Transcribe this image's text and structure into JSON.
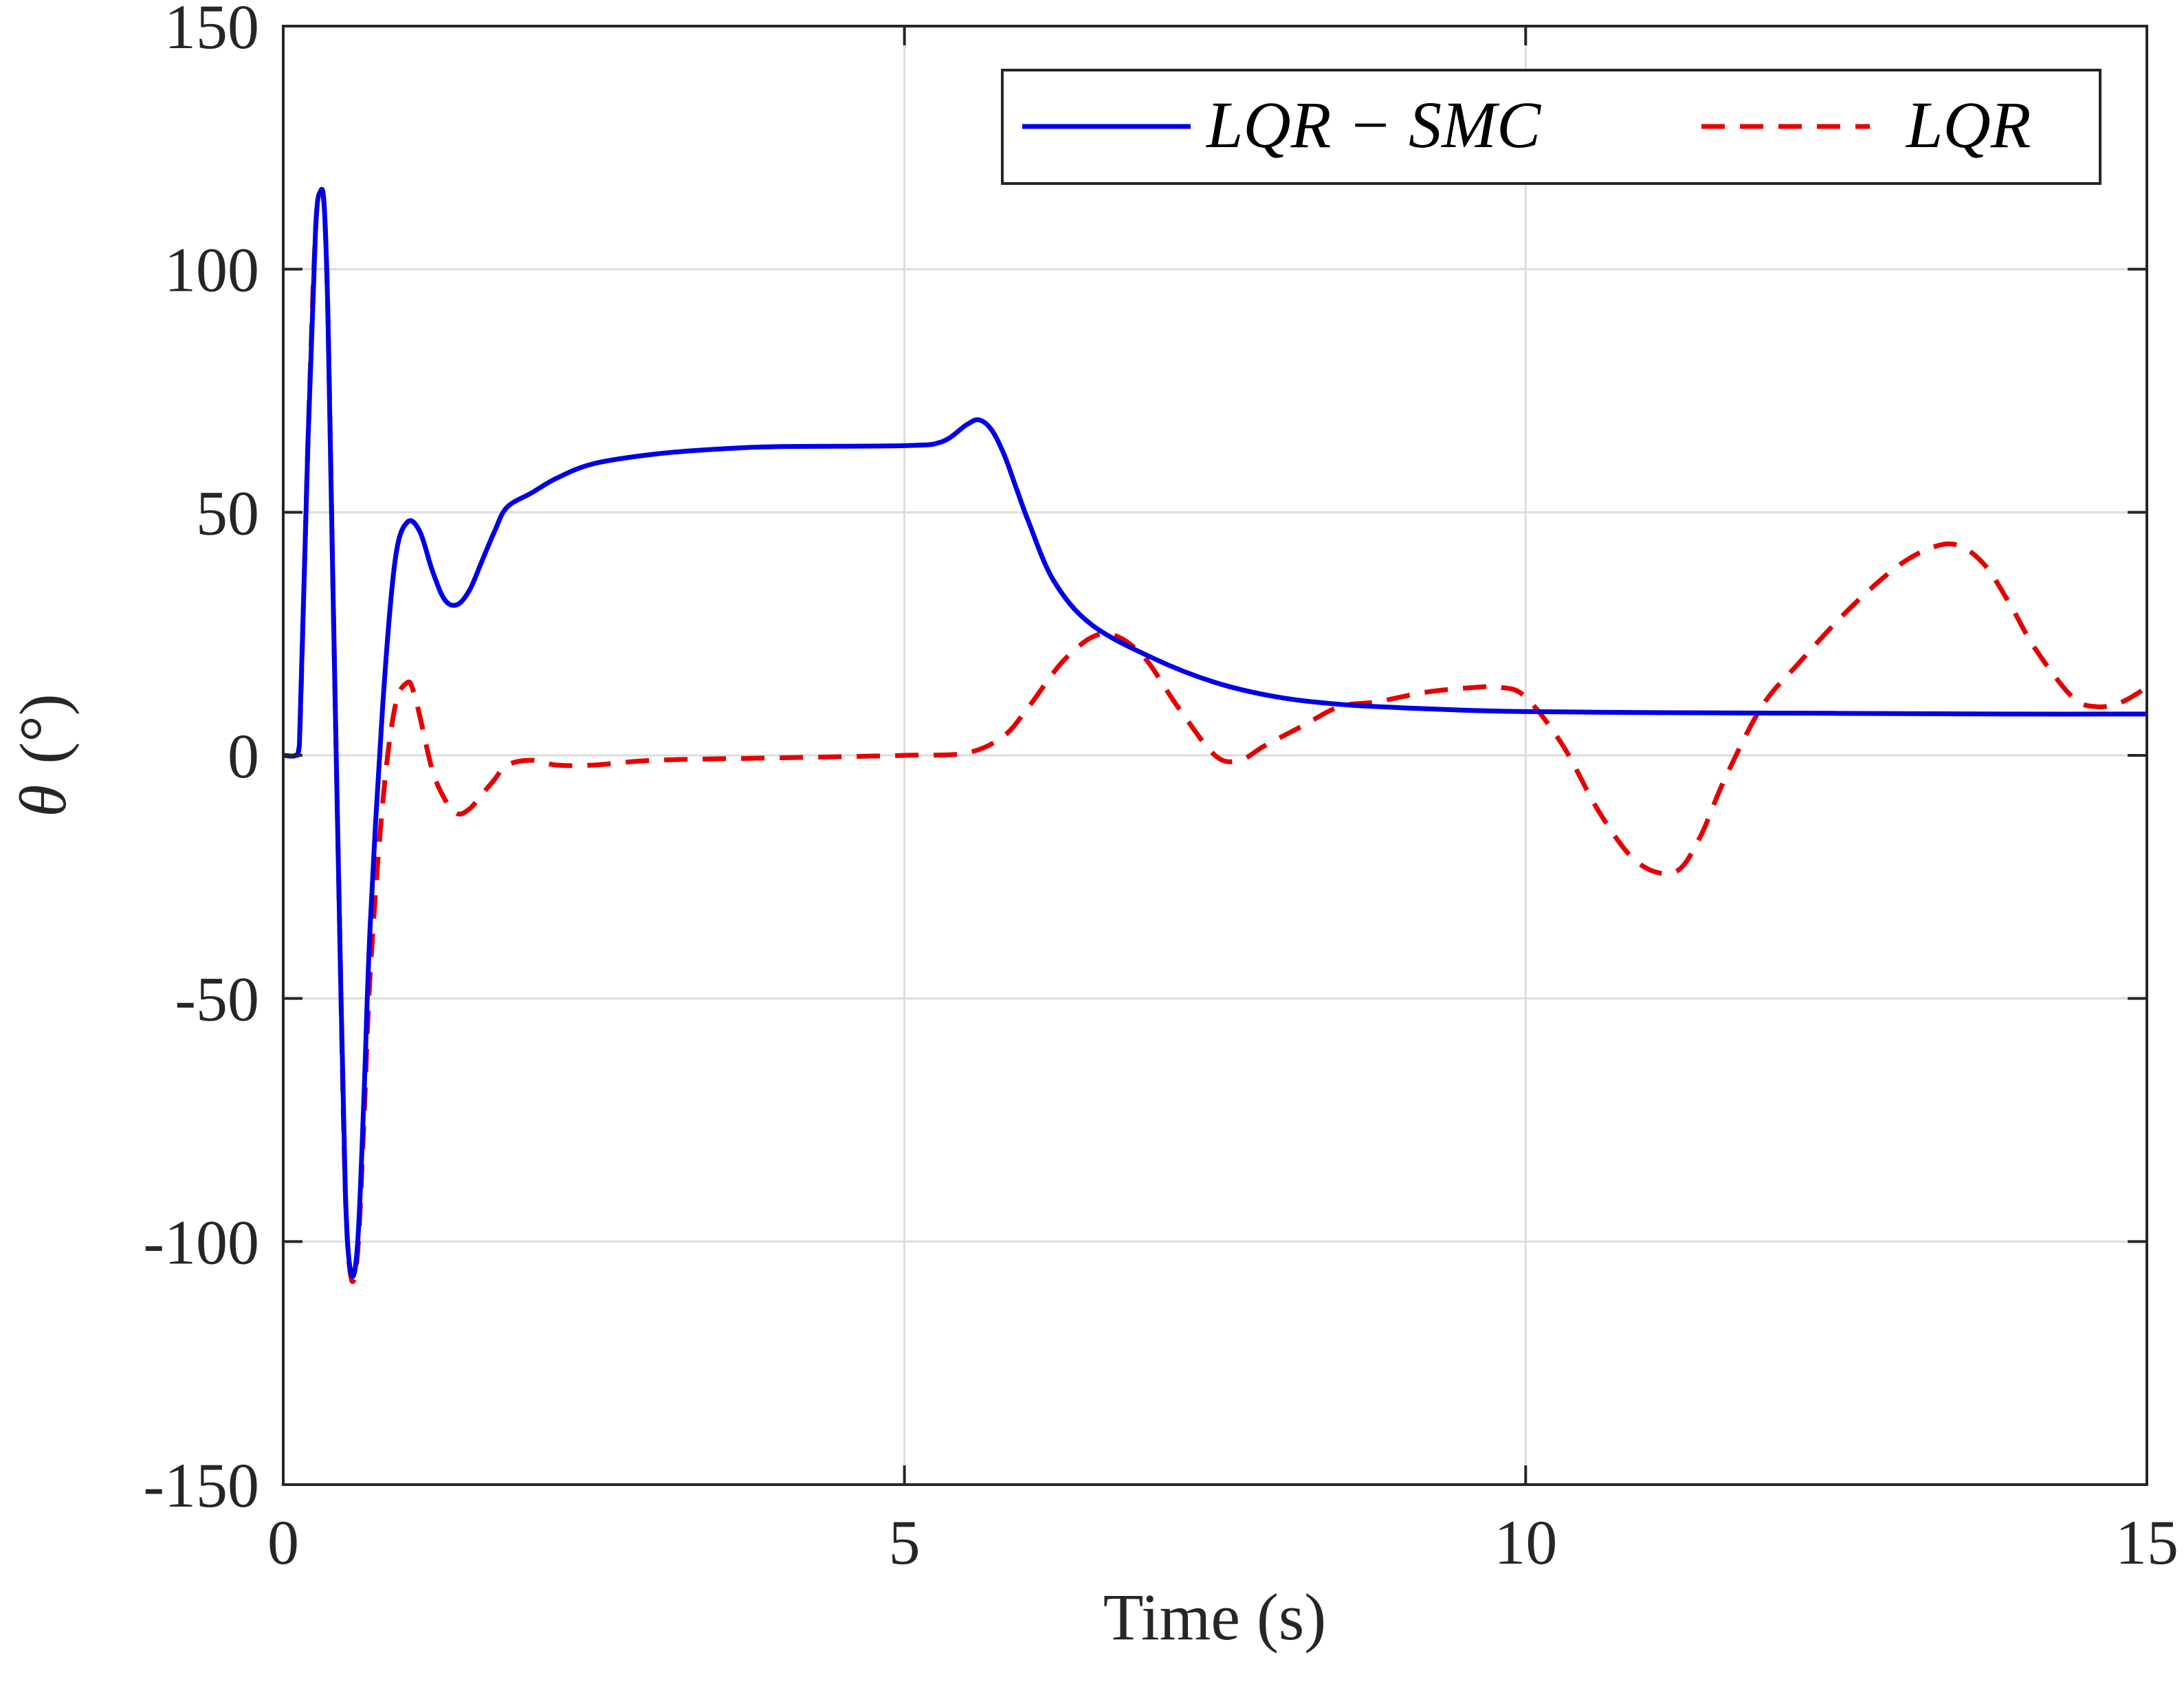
{
  "chart_data": {
    "type": "line",
    "title": "",
    "xlabel": "Time (s)",
    "ylabel_symbol": "θ",
    "ylabel_unit": "(°)",
    "xlim": [
      0,
      15
    ],
    "ylim": [
      -150,
      150
    ],
    "x_ticks": [
      0,
      5,
      10,
      15
    ],
    "x_tick_labels": [
      "0",
      "5",
      "10",
      "15"
    ],
    "y_ticks": [
      -150,
      -100,
      -50,
      0,
      50,
      100,
      150
    ],
    "y_tick_labels": [
      "-150",
      "-100",
      "-50",
      "0",
      "50",
      "100",
      "150"
    ],
    "grid": true,
    "legend_position": "top-right",
    "series": [
      {
        "name": "LQR − SMC",
        "legend_label": "LQR − SMC",
        "color": "#0000e6",
        "style": "solid",
        "x": [
          0,
          0.1,
          0.13,
          0.2,
          0.26,
          0.3,
          0.33,
          0.36,
          0.4,
          0.45,
          0.5,
          0.55,
          0.6,
          0.65,
          0.7,
          0.8,
          0.9,
          1.0,
          1.1,
          1.2,
          1.3,
          1.4,
          1.5,
          1.6,
          1.7,
          1.8,
          2.0,
          2.2,
          2.5,
          3.0,
          3.5,
          4.0,
          5.0,
          5.3,
          5.5,
          5.6,
          5.7,
          5.8,
          5.9,
          6.0,
          6.2,
          6.5,
          7.0,
          7.5,
          8.0,
          8.5,
          9.0,
          9.5,
          10.0,
          11.0,
          12.0,
          13.0,
          14.0,
          15.0
        ],
        "y": [
          0,
          0,
          2,
          65,
          108,
          116,
          113,
          90,
          35,
          -30,
          -90,
          -107,
          -100,
          -70,
          -35,
          10,
          40,
          48,
          46,
          38,
          32,
          31,
          34,
          40,
          46,
          51,
          54,
          57,
          60,
          62,
          63,
          63.5,
          63.7,
          64.5,
          68,
          69,
          67,
          62,
          55,
          48,
          36,
          27,
          20,
          15,
          12,
          10.5,
          9.8,
          9.3,
          9.0,
          8.8,
          8.7,
          8.6,
          8.5,
          8.5
        ]
      },
      {
        "name": "LQR",
        "legend_label": "LQR",
        "color": "#e60000",
        "style": "dashed",
        "x": [
          0,
          0.1,
          0.13,
          0.2,
          0.26,
          0.3,
          0.33,
          0.36,
          0.4,
          0.45,
          0.5,
          0.55,
          0.6,
          0.65,
          0.7,
          0.8,
          0.9,
          1.0,
          1.05,
          1.1,
          1.2,
          1.3,
          1.4,
          1.5,
          1.6,
          1.7,
          1.8,
          2.0,
          2.2,
          2.5,
          3.0,
          4.0,
          5.0,
          5.5,
          5.8,
          6.0,
          6.3,
          6.6,
          6.9,
          7.2,
          7.5,
          7.7,
          7.9,
          8.2,
          8.5,
          8.8,
          9.2,
          9.6,
          9.8,
          10.0,
          10.3,
          10.6,
          10.9,
          11.2,
          11.4,
          11.6,
          11.9,
          12.2,
          12.6,
          13.0,
          13.3,
          13.5,
          13.7,
          13.9,
          14.1,
          14.4,
          14.6,
          14.8,
          15.0
        ],
        "y": [
          0,
          0,
          2,
          65,
          108,
          116,
          113,
          90,
          35,
          -30,
          -90,
          -108,
          -102,
          -75,
          -45,
          -10,
          10,
          15,
          13,
          8,
          -3,
          -9,
          -12,
          -11,
          -8,
          -5,
          -2,
          -1,
          -2,
          -2,
          -1,
          -0.5,
          0,
          0.5,
          4,
          10,
          20,
          25,
          21,
          10,
          0,
          -1,
          2,
          6,
          10,
          11,
          13,
          14,
          14,
          12,
          2,
          -12,
          -22,
          -24,
          -17,
          -5,
          10,
          19,
          30,
          39,
          43,
          43,
          39,
          31,
          22,
          12,
          10,
          11,
          14
        ]
      }
    ]
  }
}
